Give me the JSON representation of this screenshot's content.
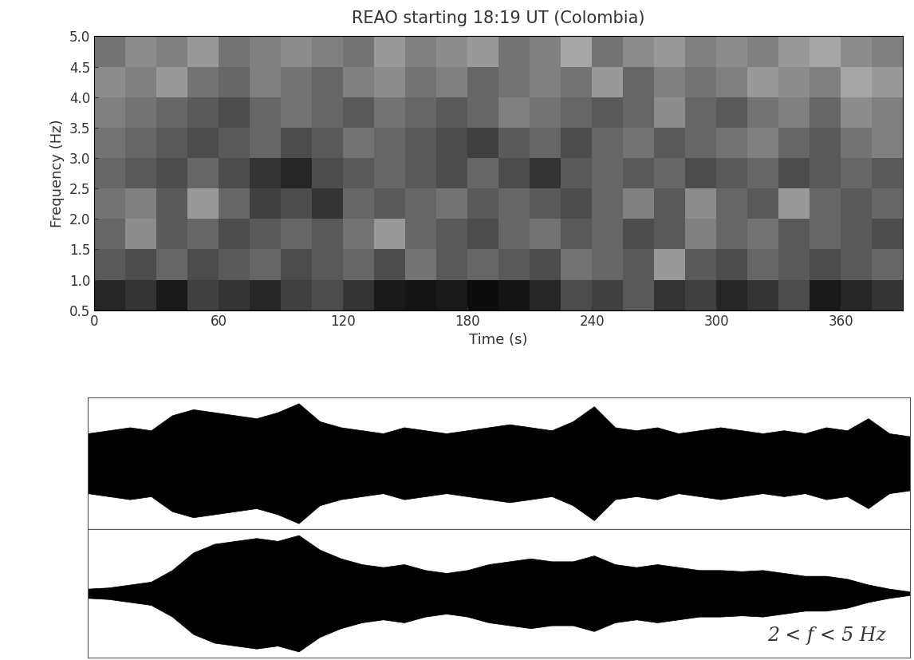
{
  "chart_data": [
    {
      "type": "heatmap",
      "title": "REAO starting 18:19 UT (Colombia)",
      "x_label": "Time (s)",
      "y_label": "Frequency (Hz)",
      "xlim": [
        0,
        390
      ],
      "xticks": [
        0,
        60,
        120,
        180,
        240,
        300,
        360
      ],
      "ylim": [
        0.5,
        5.0
      ],
      "yticks": [
        {
          "value": 0.5,
          "label": "0.5"
        },
        {
          "value": 1.0,
          "label": "1.0"
        },
        {
          "value": 1.5,
          "label": "1.5"
        },
        {
          "value": 2.0,
          "label": "2.0"
        },
        {
          "value": 2.5,
          "label": "2.5"
        },
        {
          "value": 3.0,
          "label": "3.0"
        },
        {
          "value": 3.5,
          "label": "3.5"
        },
        {
          "value": 4.0,
          "label": "4.0"
        },
        {
          "value": 4.5,
          "label": "4.5"
        },
        {
          "value": 5.0,
          "label": "5.0"
        }
      ],
      "color": "gray",
      "color_range": [
        0,
        1
      ],
      "time_bins": [
        0,
        15,
        30,
        45,
        60,
        75,
        90,
        105,
        120,
        135,
        150,
        165,
        180,
        195,
        210,
        225,
        240,
        255,
        270,
        285,
        300,
        315,
        330,
        345,
        360,
        375,
        390
      ],
      "frequency_bins": [
        0.5,
        1.0,
        1.5,
        2.0,
        2.5,
        3.0,
        3.5,
        4.0,
        4.5,
        5.0
      ],
      "cells": [
        [
          0.15,
          0.2,
          0.1,
          0.25,
          0.2,
          0.15,
          0.25,
          0.3,
          0.2,
          0.1,
          0.08,
          0.1,
          0.05,
          0.08,
          0.15,
          0.3,
          0.25,
          0.35,
          0.2,
          0.25,
          0.15,
          0.2,
          0.3,
          0.1,
          0.15,
          0.2
        ],
        [
          0.35,
          0.3,
          0.4,
          0.3,
          0.35,
          0.4,
          0.3,
          0.35,
          0.4,
          0.3,
          0.45,
          0.35,
          0.4,
          0.35,
          0.3,
          0.45,
          0.4,
          0.35,
          0.6,
          0.35,
          0.3,
          0.4,
          0.35,
          0.3,
          0.35,
          0.4
        ],
        [
          0.4,
          0.55,
          0.35,
          0.4,
          0.3,
          0.35,
          0.4,
          0.35,
          0.45,
          0.6,
          0.4,
          0.35,
          0.3,
          0.4,
          0.45,
          0.35,
          0.4,
          0.3,
          0.35,
          0.5,
          0.4,
          0.45,
          0.35,
          0.4,
          0.35,
          0.3
        ],
        [
          0.45,
          0.5,
          0.35,
          0.6,
          0.4,
          0.25,
          0.3,
          0.2,
          0.4,
          0.35,
          0.4,
          0.45,
          0.35,
          0.4,
          0.35,
          0.3,
          0.4,
          0.5,
          0.35,
          0.55,
          0.4,
          0.35,
          0.6,
          0.4,
          0.35,
          0.4
        ],
        [
          0.4,
          0.35,
          0.3,
          0.4,
          0.3,
          0.2,
          0.15,
          0.3,
          0.35,
          0.4,
          0.35,
          0.3,
          0.4,
          0.3,
          0.2,
          0.35,
          0.4,
          0.35,
          0.4,
          0.3,
          0.35,
          0.4,
          0.3,
          0.35,
          0.4,
          0.35
        ],
        [
          0.45,
          0.4,
          0.35,
          0.3,
          0.35,
          0.4,
          0.3,
          0.35,
          0.45,
          0.4,
          0.35,
          0.3,
          0.25,
          0.35,
          0.4,
          0.3,
          0.4,
          0.45,
          0.35,
          0.4,
          0.45,
          0.5,
          0.4,
          0.35,
          0.45,
          0.5
        ],
        [
          0.5,
          0.45,
          0.4,
          0.35,
          0.3,
          0.4,
          0.45,
          0.4,
          0.35,
          0.45,
          0.4,
          0.35,
          0.4,
          0.5,
          0.45,
          0.4,
          0.35,
          0.4,
          0.55,
          0.4,
          0.35,
          0.45,
          0.5,
          0.4,
          0.55,
          0.5
        ],
        [
          0.55,
          0.5,
          0.6,
          0.45,
          0.4,
          0.5,
          0.45,
          0.4,
          0.5,
          0.55,
          0.45,
          0.5,
          0.4,
          0.45,
          0.5,
          0.45,
          0.6,
          0.4,
          0.5,
          0.45,
          0.5,
          0.6,
          0.55,
          0.5,
          0.65,
          0.6
        ],
        [
          0.45,
          0.55,
          0.5,
          0.6,
          0.45,
          0.5,
          0.55,
          0.5,
          0.45,
          0.6,
          0.5,
          0.55,
          0.6,
          0.45,
          0.5,
          0.65,
          0.45,
          0.55,
          0.6,
          0.5,
          0.55,
          0.5,
          0.6,
          0.65,
          0.55,
          0.5
        ]
      ]
    },
    {
      "type": "area",
      "tick_labels": false,
      "color": "#000000",
      "xlim": [
        0,
        390
      ],
      "ylim": [
        -1.1,
        1.1
      ],
      "x": [
        0,
        10,
        20,
        30,
        40,
        50,
        60,
        70,
        80,
        90,
        100,
        110,
        120,
        130,
        140,
        150,
        160,
        170,
        180,
        190,
        200,
        210,
        220,
        230,
        240,
        250,
        260,
        270,
        280,
        290,
        300,
        310,
        320,
        330,
        340,
        350,
        360,
        370,
        380,
        390
      ],
      "values": [
        0.5,
        0.55,
        0.6,
        0.55,
        0.8,
        0.9,
        0.85,
        0.8,
        0.75,
        0.85,
        1.0,
        0.7,
        0.6,
        0.55,
        0.5,
        0.6,
        0.55,
        0.5,
        0.55,
        0.6,
        0.65,
        0.6,
        0.55,
        0.7,
        0.95,
        0.6,
        0.55,
        0.6,
        0.5,
        0.55,
        0.6,
        0.55,
        0.5,
        0.55,
        0.5,
        0.6,
        0.55,
        0.75,
        0.5,
        0.45
      ]
    },
    {
      "type": "area",
      "tick_labels": false,
      "color": "#000000",
      "annotation": "2 < f < 5 Hz",
      "xlim": [
        0,
        390
      ],
      "ylim": [
        -1.1,
        1.1
      ],
      "x": [
        0,
        10,
        20,
        30,
        40,
        50,
        60,
        70,
        80,
        90,
        100,
        110,
        120,
        130,
        140,
        150,
        160,
        170,
        180,
        190,
        200,
        210,
        220,
        230,
        240,
        250,
        260,
        270,
        280,
        290,
        300,
        310,
        320,
        330,
        340,
        350,
        360,
        370,
        380,
        390
      ],
      "values": [
        0.08,
        0.1,
        0.15,
        0.2,
        0.4,
        0.7,
        0.85,
        0.9,
        0.95,
        0.9,
        1.0,
        0.75,
        0.6,
        0.5,
        0.45,
        0.5,
        0.4,
        0.35,
        0.4,
        0.5,
        0.55,
        0.6,
        0.55,
        0.55,
        0.65,
        0.5,
        0.45,
        0.5,
        0.45,
        0.4,
        0.4,
        0.38,
        0.4,
        0.35,
        0.3,
        0.3,
        0.25,
        0.15,
        0.08,
        0.03
      ]
    }
  ]
}
